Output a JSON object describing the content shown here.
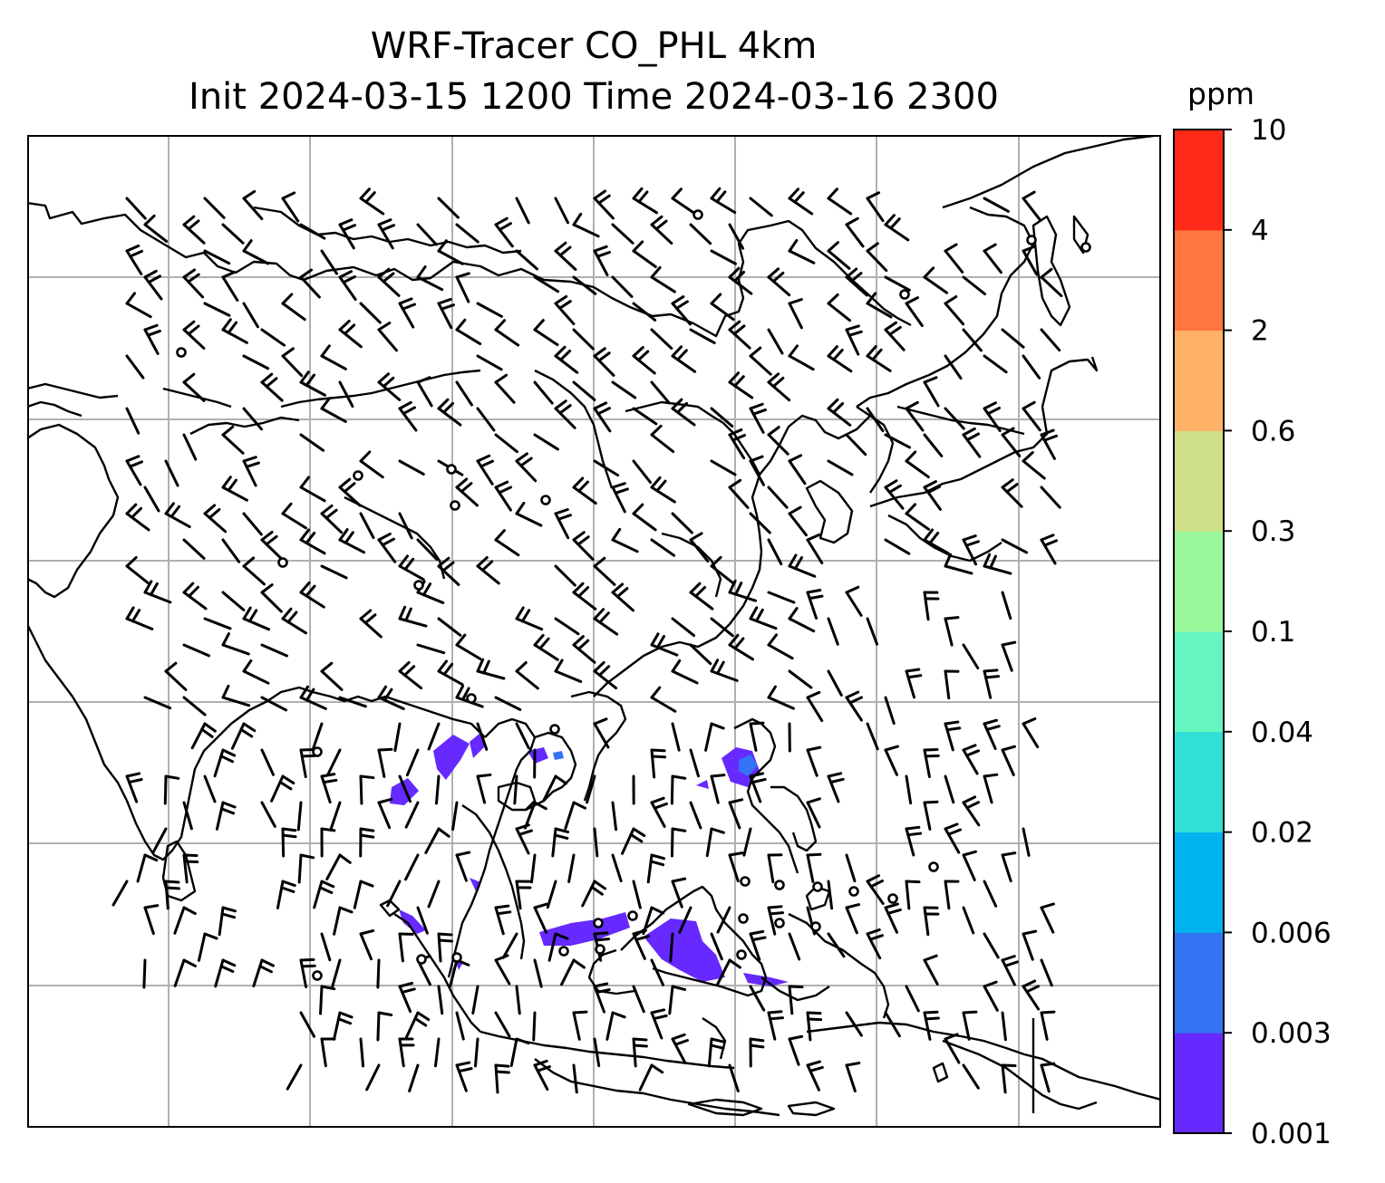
{
  "title": {
    "line1": "WRF-Tracer CO_PHL 4km",
    "line2": "Init 2024-03-15 1200 Time 2024-03-16 2300"
  },
  "colorbar": {
    "unit": "ppm",
    "levels": [
      "0.001",
      "0.003",
      "0.006",
      "0.02",
      "0.04",
      "0.1",
      "0.3",
      "0.6",
      "2",
      "4",
      "10"
    ],
    "colors": [
      "#6629ff",
      "#3374f5",
      "#00b2ee",
      "#30dfd6",
      "#66f5c0",
      "#99f799",
      "#cddf88",
      "#ffb266",
      "#ff7640",
      "#ff2a18"
    ]
  },
  "map": {
    "grid": "on",
    "grid_color": "#b0b0b0",
    "coastline_color": "#000000",
    "tracer_color": "#6629ff",
    "tracer_core_color": "#3374f5",
    "features": [
      "coastlines",
      "country-borders",
      "wind-barbs",
      "CO-tracer-shading"
    ]
  }
}
